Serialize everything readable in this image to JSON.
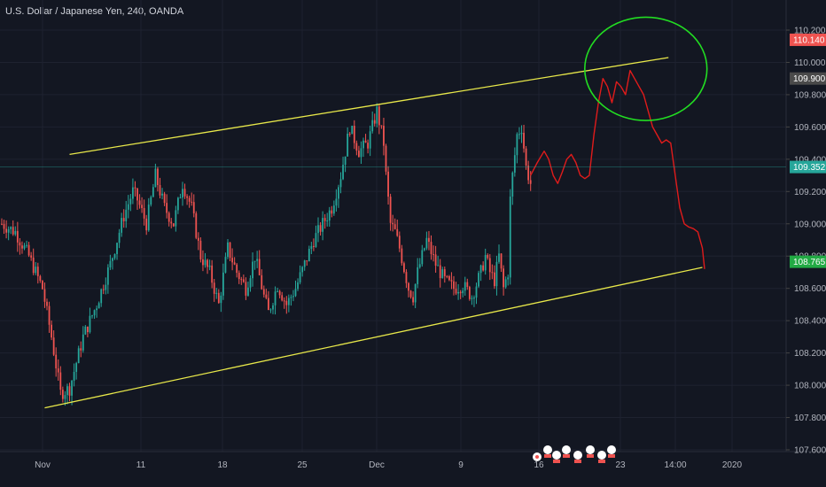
{
  "header": {
    "symbol_title": "U.S. Dollar / Japanese Yen, 240, OANDA"
  },
  "colors": {
    "background": "#131722",
    "grid": "#1e2230",
    "up_candle": "#26a69a",
    "down_candle": "#ef5350",
    "trendline": "#e8e84a",
    "projection": "#e01b1b",
    "ellipse": "#22dd22",
    "axis_text": "#b2b5be"
  },
  "chart_data": {
    "type": "candlestick",
    "title": "U.S. Dollar / Japanese Yen, 240, OANDA",
    "ylim": [
      107.5,
      110.3
    ],
    "y_ticks": [
      110.2,
      110.0,
      109.8,
      109.6,
      109.4,
      109.2,
      109.0,
      108.8,
      108.6,
      108.4,
      108.2,
      108.0,
      107.8,
      107.6
    ],
    "x_ticks": [
      "Nov",
      "11",
      "18",
      "25",
      "Dec",
      "9",
      "16",
      "23",
      "14:00",
      "2020"
    ],
    "price_tags": [
      {
        "label": "110.140",
        "value": 110.14,
        "color": "#ef5350"
      },
      {
        "label": "109.900",
        "value": 109.9,
        "color": "#4a4a4a"
      },
      {
        "label": "109.352",
        "value": 109.352,
        "color": "#26a69a"
      },
      {
        "label": "108.765",
        "value": 108.765,
        "color": "#22aa44"
      }
    ],
    "anchors": [
      [
        0,
        109.0
      ],
      [
        6,
        108.95
      ],
      [
        12,
        108.8
      ],
      [
        18,
        108.6
      ],
      [
        22,
        108.3
      ],
      [
        26,
        107.95
      ],
      [
        30,
        107.98
      ],
      [
        36,
        108.3
      ],
      [
        42,
        108.5
      ],
      [
        48,
        108.75
      ],
      [
        54,
        109.05
      ],
      [
        58,
        109.2
      ],
      [
        60,
        109.15
      ],
      [
        64,
        109.0
      ],
      [
        68,
        109.3
      ],
      [
        72,
        109.1
      ],
      [
        76,
        109.0
      ],
      [
        80,
        109.25
      ],
      [
        84,
        109.1
      ],
      [
        88,
        108.8
      ],
      [
        92,
        108.7
      ],
      [
        96,
        108.5
      ],
      [
        100,
        108.85
      ],
      [
        104,
        108.7
      ],
      [
        108,
        108.6
      ],
      [
        112,
        108.8
      ],
      [
        116,
        108.55
      ],
      [
        118,
        108.45
      ],
      [
        122,
        108.62
      ],
      [
        126,
        108.5
      ],
      [
        130,
        108.6
      ],
      [
        134,
        108.75
      ],
      [
        138,
        108.9
      ],
      [
        142,
        109.0
      ],
      [
        146,
        109.1
      ],
      [
        150,
        109.3
      ],
      [
        154,
        109.6
      ],
      [
        158,
        109.45
      ],
      [
        162,
        109.5
      ],
      [
        166,
        109.7
      ],
      [
        169,
        109.5
      ],
      [
        170,
        109.3
      ],
      [
        172,
        109.0
      ],
      [
        174,
        108.95
      ],
      [
        176,
        108.85
      ],
      [
        180,
        108.6
      ],
      [
        182,
        108.55
      ],
      [
        184,
        108.7
      ],
      [
        188,
        108.9
      ],
      [
        192,
        108.75
      ],
      [
        196,
        108.65
      ],
      [
        200,
        108.6
      ],
      [
        204,
        108.62
      ],
      [
        208,
        108.55
      ],
      [
        212,
        108.7
      ],
      [
        214,
        108.8
      ],
      [
        216,
        108.7
      ],
      [
        218,
        108.65
      ],
      [
        220,
        108.8
      ],
      [
        222,
        108.6
      ],
      [
        224,
        108.7
      ],
      [
        225,
        109.15
      ],
      [
        226,
        109.3
      ],
      [
        228,
        109.55
      ],
      [
        230,
        109.6
      ],
      [
        232,
        109.35
      ],
      [
        234,
        109.25
      ]
    ],
    "channel": {
      "upper": {
        "from": [
          30,
          109.43
        ],
        "to": [
          295,
          110.03
        ]
      },
      "lower": {
        "from": [
          19,
          107.86
        ],
        "to": [
          310,
          108.73
        ]
      }
    },
    "projection": [
      [
        234,
        109.3
      ],
      [
        237,
        109.38
      ],
      [
        240,
        109.45
      ],
      [
        242,
        109.4
      ],
      [
        244,
        109.3
      ],
      [
        246,
        109.25
      ],
      [
        248,
        109.32
      ],
      [
        250,
        109.4
      ],
      [
        252,
        109.43
      ],
      [
        254,
        109.38
      ],
      [
        256,
        109.3
      ],
      [
        258,
        109.28
      ],
      [
        260,
        109.3
      ],
      [
        262,
        109.55
      ],
      [
        264,
        109.75
      ],
      [
        266,
        109.9
      ],
      [
        268,
        109.85
      ],
      [
        270,
        109.75
      ],
      [
        272,
        109.88
      ],
      [
        274,
        109.85
      ],
      [
        276,
        109.8
      ],
      [
        278,
        109.95
      ],
      [
        280,
        109.9
      ],
      [
        282,
        109.85
      ],
      [
        284,
        109.8
      ],
      [
        286,
        109.7
      ],
      [
        288,
        109.6
      ],
      [
        290,
        109.55
      ],
      [
        292,
        109.5
      ],
      [
        294,
        109.52
      ],
      [
        296,
        109.5
      ],
      [
        298,
        109.3
      ],
      [
        300,
        109.1
      ],
      [
        302,
        109.0
      ],
      [
        304,
        108.98
      ],
      [
        306,
        108.97
      ],
      [
        308,
        108.95
      ],
      [
        310,
        108.85
      ],
      [
        311,
        108.72
      ]
    ],
    "ellipse": {
      "center": [
        285,
        109.96
      ],
      "rx": 26,
      "ry": 0.32
    }
  }
}
